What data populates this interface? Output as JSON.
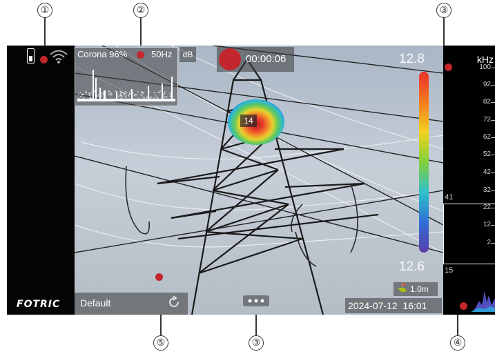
{
  "callouts": [
    "①",
    "②",
    "③",
    "③",
    "⑤",
    "④"
  ],
  "status": {
    "logo": "FOTRIC"
  },
  "spectrum_box": {
    "label": "Corona 96%",
    "freq": "50Hz",
    "unit_button": "dB"
  },
  "record": {
    "timer": "00:00:06"
  },
  "colorbar": {
    "max": "12.8",
    "min": "12.6",
    "colors": [
      "#e8302a",
      "#f47a1f",
      "#f2d21e",
      "#7fcf3a",
      "#2fc1c9",
      "#2f6fd6",
      "#5a3ea8"
    ]
  },
  "hotspot": {
    "value": "14"
  },
  "distance": {
    "label": "1.0m"
  },
  "datetime": {
    "text": "2024-07-12  16:01"
  },
  "preset": {
    "label": "Default"
  },
  "frequency_axis": {
    "unit": "kHz",
    "ticks": [
      "100",
      "92",
      "82",
      "72",
      "62",
      "52",
      "42",
      "32",
      "22",
      "12",
      "2"
    ],
    "marker_upper": "41",
    "marker_lower": "15"
  },
  "accent_color": "#c4262e"
}
